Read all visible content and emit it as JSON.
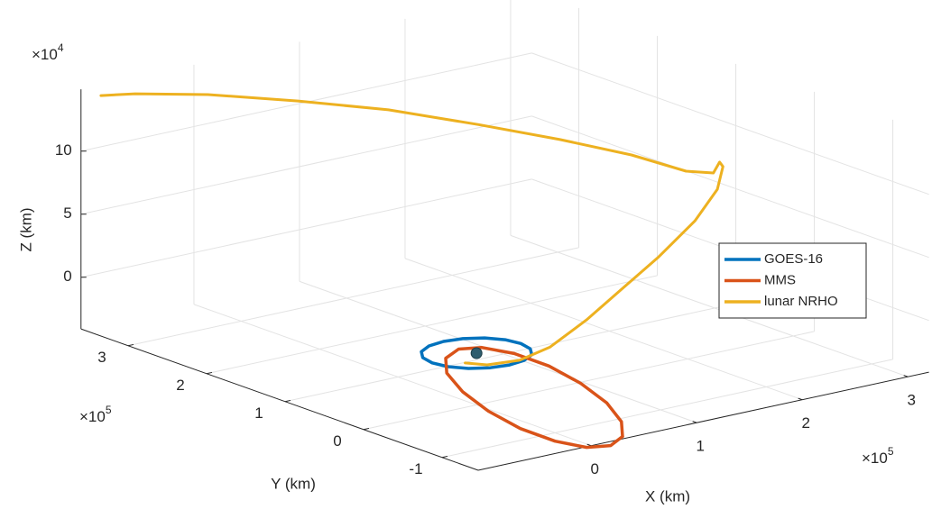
{
  "chart_data": {
    "type": "line3d",
    "x_label": "X (km)",
    "y_label": "Y (km)",
    "z_label": "Z (km)",
    "x_exponent": {
      "base": "×10",
      "power": "5"
    },
    "y_exponent": {
      "base": "×10",
      "power": "5"
    },
    "z_exponent": {
      "base": "×10",
      "power": "4"
    },
    "xlim": [
      -1.07,
      3.2
    ],
    "ylim": [
      -1.46,
      3.6
    ],
    "zlim": [
      -4.1,
      14.9
    ],
    "xticks": [
      0,
      1,
      2,
      3
    ],
    "yticks": [
      -1,
      0,
      1,
      2,
      3
    ],
    "zticks": [
      0,
      5,
      10
    ],
    "grid": true,
    "legend_position": "right",
    "earth": {
      "x": 0,
      "y": 0,
      "z": 0,
      "color": "#2f5d6e"
    },
    "series": [
      {
        "name": "GOES-16",
        "color": "#0072BD",
        "x": [
          0.42,
          0.39,
          0.3,
          0.16,
          0,
          -0.16,
          -0.3,
          -0.39,
          -0.42,
          -0.39,
          -0.3,
          -0.16,
          0,
          0.16,
          0.3,
          0.39,
          0.42
        ],
        "y": [
          0,
          0.16,
          0.3,
          0.39,
          0.42,
          0.39,
          0.3,
          0.16,
          0,
          -0.16,
          -0.3,
          -0.39,
          -0.42,
          -0.39,
          -0.3,
          -0.16,
          0
        ],
        "z": [
          0,
          0,
          0,
          0,
          0,
          0,
          0,
          0,
          0,
          0,
          0,
          0,
          0,
          0,
          0,
          0,
          0
        ]
      },
      {
        "name": "MMS",
        "color": "#D95319",
        "x": [
          1.13,
          1.04,
          0.85,
          0.61,
          0.34,
          0.09,
          -0.11,
          -0.23,
          -0.24,
          -0.14,
          0.04,
          0.29,
          0.56,
          0.81,
          1.01,
          1.12,
          1.13
        ],
        "y": [
          -0.34,
          -0.31,
          -0.26,
          -0.18,
          -0.1,
          -0.03,
          0.03,
          0.07,
          0.07,
          0.04,
          -0.01,
          -0.09,
          -0.17,
          -0.24,
          -0.3,
          -0.34,
          -0.34
        ],
        "z": [
          -7.91,
          -8.53,
          -8.44,
          -7.69,
          -6.37,
          -4.69,
          -2.92,
          -1.31,
          -0.12,
          0.49,
          0.4,
          -0.35,
          -1.66,
          -3.34,
          -5.11,
          -6.72,
          -7.91
        ]
      },
      {
        "name": "lunar NRHO",
        "color": "#EDB120",
        "x": [
          -0.07,
          0.1,
          0.37,
          0.66,
          1.04,
          1.42,
          1.8,
          2.18,
          2.43,
          2.52,
          2.6,
          2.69,
          2.58,
          2.36,
          1.98,
          1.5,
          0.95,
          0.39,
          -0.24,
          -0.78,
          -1.03
        ],
        "y": [
          0.05,
          0,
          -0.05,
          -0.05,
          0,
          0.05,
          0.1,
          0.15,
          0.2,
          0.25,
          0.4,
          0.6,
          0.8,
          1.2,
          1.6,
          2,
          2.4,
          2.8,
          3.1,
          3.3,
          3.4
        ],
        "z": [
          -0.76,
          -1.11,
          -1.12,
          -0.6,
          0.74,
          2.44,
          4.14,
          6.19,
          8.13,
          9.65,
          9.53,
          8.06,
          7.96,
          8.76,
          9.79,
          10.97,
          12.25,
          13.09,
          14.08,
          14.68,
          14.77
        ]
      }
    ]
  }
}
